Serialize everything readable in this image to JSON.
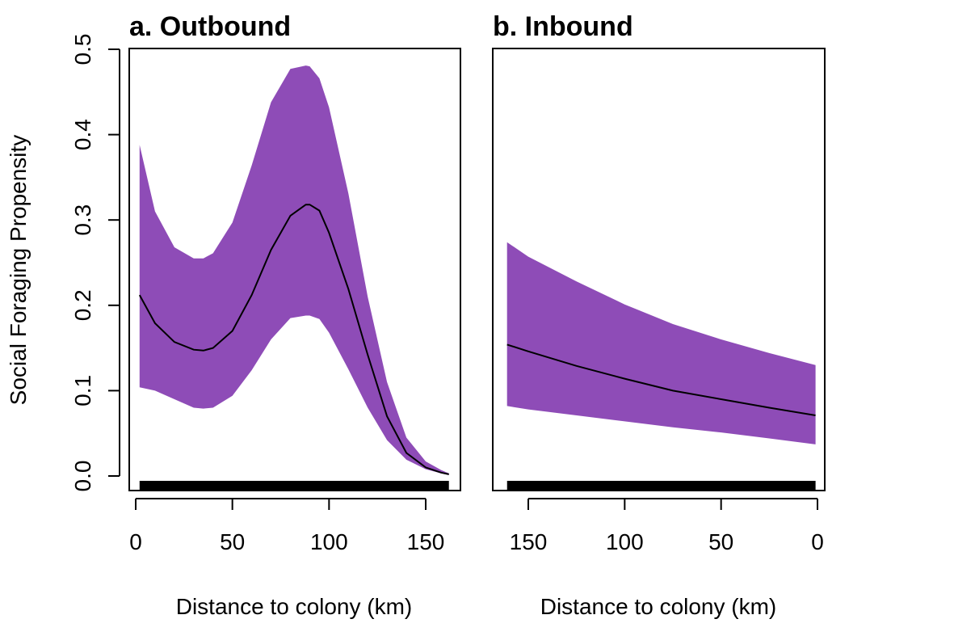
{
  "figure": {
    "ylabel": "Social Foraging Propensity"
  },
  "chart_data": [
    {
      "type": "area",
      "title": "a. Outbound",
      "xlabel": "Distance to colony (km)",
      "ylabel": "Social Foraging Propensity",
      "xlim": [
        0,
        165
      ],
      "ylim": [
        0,
        0.5
      ],
      "x_reversed": false,
      "xticks": [
        0,
        50,
        100,
        150
      ],
      "xtick_labels": [
        "0",
        "50",
        "100",
        "150"
      ],
      "yticks": [
        0.0,
        0.1,
        0.2,
        0.3,
        0.4,
        0.5
      ],
      "ytick_labels": [
        "0.0",
        "0.1",
        "0.2",
        "0.3",
        "0.4",
        "0.5"
      ],
      "grid": false,
      "band_color": "#8e4cb7",
      "line_color": "#000000",
      "series": [
        {
          "x": [
            2,
            10,
            20,
            30,
            35,
            40,
            50,
            60,
            70,
            80,
            88,
            90,
            95,
            100,
            110,
            120,
            130,
            140,
            150,
            158,
            162
          ],
          "fit": [
            0.212,
            0.179,
            0.157,
            0.148,
            0.147,
            0.15,
            0.17,
            0.212,
            0.265,
            0.305,
            0.318,
            0.318,
            0.311,
            0.285,
            0.219,
            0.142,
            0.07,
            0.027,
            0.01,
            0.004,
            0.002
          ],
          "lower": [
            0.104,
            0.1,
            0.09,
            0.08,
            0.079,
            0.08,
            0.094,
            0.124,
            0.16,
            0.185,
            0.188,
            0.188,
            0.184,
            0.168,
            0.125,
            0.08,
            0.042,
            0.019,
            0.008,
            0.003,
            0.001
          ],
          "upper": [
            0.388,
            0.31,
            0.268,
            0.255,
            0.255,
            0.261,
            0.297,
            0.364,
            0.438,
            0.477,
            0.481,
            0.48,
            0.466,
            0.432,
            0.331,
            0.21,
            0.11,
            0.045,
            0.017,
            0.007,
            0.003
          ]
        }
      ],
      "rug_x_range": [
        2,
        162
      ]
    },
    {
      "type": "area",
      "title": "b. Inbound",
      "xlabel": "Distance to colony (km)",
      "ylabel": "",
      "xlim": [
        165,
        0
      ],
      "ylim": [
        0,
        0.5
      ],
      "x_reversed": true,
      "xticks": [
        150,
        100,
        50,
        0
      ],
      "xtick_labels": [
        "150",
        "100",
        "50",
        "0"
      ],
      "yticks": [],
      "grid": false,
      "band_color": "#8e4cb7",
      "line_color": "#000000",
      "series": [
        {
          "x": [
            161,
            150,
            125,
            100,
            75,
            50,
            25,
            1
          ],
          "fit": [
            0.154,
            0.146,
            0.129,
            0.114,
            0.1,
            0.09,
            0.08,
            0.071
          ],
          "lower": [
            0.082,
            0.078,
            0.071,
            0.064,
            0.057,
            0.051,
            0.044,
            0.037
          ],
          "upper": [
            0.274,
            0.257,
            0.228,
            0.201,
            0.178,
            0.16,
            0.144,
            0.13
          ]
        }
      ],
      "rug_x_range": [
        1,
        161
      ]
    }
  ]
}
